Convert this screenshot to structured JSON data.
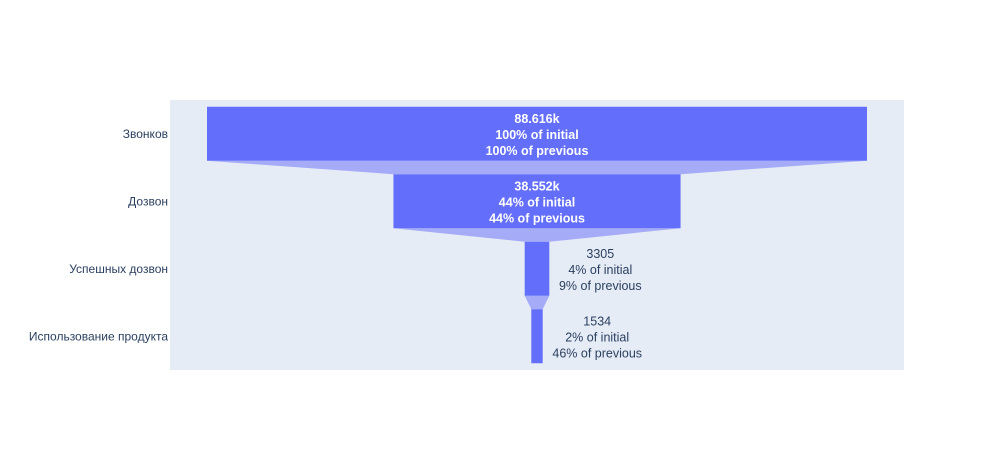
{
  "chart_data": {
    "type": "funnel",
    "categories": [
      "Звонков",
      "Дозвон",
      "Успешных дозвон",
      "Использование продукта"
    ],
    "values": [
      88616,
      38552,
      3305,
      1534
    ],
    "labels": [
      {
        "value": "88.616k",
        "initial": "100% of initial",
        "previous": "100% of previous"
      },
      {
        "value": "38.552k",
        "initial": "44% of initial",
        "previous": "44% of previous"
      },
      {
        "value": "3305",
        "initial": "4% of initial",
        "previous": "9% of previous"
      },
      {
        "value": "1534",
        "initial": "2% of initial",
        "previous": "46% of previous"
      }
    ],
    "colors": {
      "bar": "#636efa",
      "connector": "#a5abf7",
      "plot_bg": "#e5ecf6",
      "inside_text": "#ffffff",
      "outside_text": "#2a3f5f",
      "axis_text": "#2a3f5f"
    }
  }
}
